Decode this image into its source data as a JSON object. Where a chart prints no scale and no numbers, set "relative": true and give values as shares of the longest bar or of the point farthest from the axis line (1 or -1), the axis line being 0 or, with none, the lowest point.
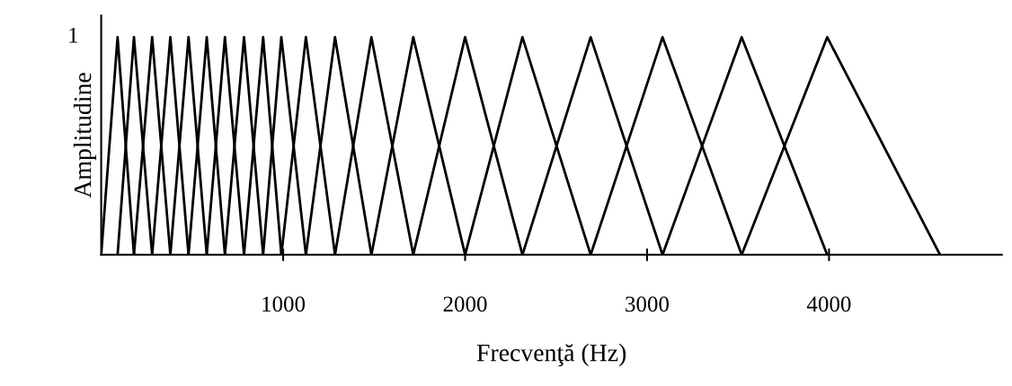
{
  "chart_data": {
    "type": "line",
    "xlabel": "Frecvenţă (Hz)",
    "ylabel": "Amplitudine",
    "xlim": [
      0,
      4950
    ],
    "relative": true,
    "annotations": [
      "1"
    ],
    "xticks": [
      1000,
      2000,
      3000,
      4000
    ],
    "grid": false,
    "marker": "none",
    "line_style": "solid",
    "series": [
      {
        "color": "#000000",
        "x": [
          0,
          90,
          180
        ],
        "values": [
          0,
          1,
          0
        ]
      },
      {
        "color": "#000000",
        "x": [
          90,
          180,
          280
        ],
        "values": [
          0,
          1,
          0
        ]
      },
      {
        "color": "#000000",
        "x": [
          180,
          280,
          380
        ],
        "values": [
          0,
          1,
          0
        ]
      },
      {
        "color": "#000000",
        "x": [
          280,
          380,
          480
        ],
        "values": [
          0,
          1,
          0
        ]
      },
      {
        "color": "#000000",
        "x": [
          380,
          480,
          580
        ],
        "values": [
          0,
          1,
          0
        ]
      },
      {
        "color": "#000000",
        "x": [
          480,
          580,
          680
        ],
        "values": [
          0,
          1,
          0
        ]
      },
      {
        "color": "#000000",
        "x": [
          580,
          680,
          785
        ],
        "values": [
          0,
          1,
          0
        ]
      },
      {
        "color": "#000000",
        "x": [
          680,
          785,
          890
        ],
        "values": [
          0,
          1,
          0
        ]
      },
      {
        "color": "#000000",
        "x": [
          785,
          890,
          990
        ],
        "values": [
          0,
          1,
          0
        ]
      },
      {
        "color": "#000000",
        "x": [
          890,
          990,
          1125
        ],
        "values": [
          0,
          1,
          0
        ]
      },
      {
        "color": "#000000",
        "x": [
          990,
          1125,
          1285
        ],
        "values": [
          0,
          1,
          0
        ]
      },
      {
        "color": "#000000",
        "x": [
          1125,
          1285,
          1485
        ],
        "values": [
          0,
          1,
          0
        ]
      },
      {
        "color": "#000000",
        "x": [
          1285,
          1485,
          1715
        ],
        "values": [
          0,
          1,
          0
        ]
      },
      {
        "color": "#000000",
        "x": [
          1485,
          1715,
          2000
        ],
        "values": [
          0,
          1,
          0
        ]
      },
      {
        "color": "#000000",
        "x": [
          1715,
          2000,
          2315
        ],
        "values": [
          0,
          1,
          0
        ]
      },
      {
        "color": "#000000",
        "x": [
          2000,
          2315,
          2690
        ],
        "values": [
          0,
          1,
          0
        ]
      },
      {
        "color": "#000000",
        "x": [
          2315,
          2690,
          3085
        ],
        "values": [
          0,
          1,
          0
        ]
      },
      {
        "color": "#000000",
        "x": [
          2690,
          3085,
          3520
        ],
        "values": [
          0,
          1,
          0
        ]
      },
      {
        "color": "#000000",
        "x": [
          3085,
          3520,
          3990
        ],
        "values": [
          0,
          1,
          0
        ]
      },
      {
        "color": "#000000",
        "x": [
          3520,
          3990,
          4610
        ],
        "values": [
          0,
          1,
          0
        ]
      }
    ]
  }
}
